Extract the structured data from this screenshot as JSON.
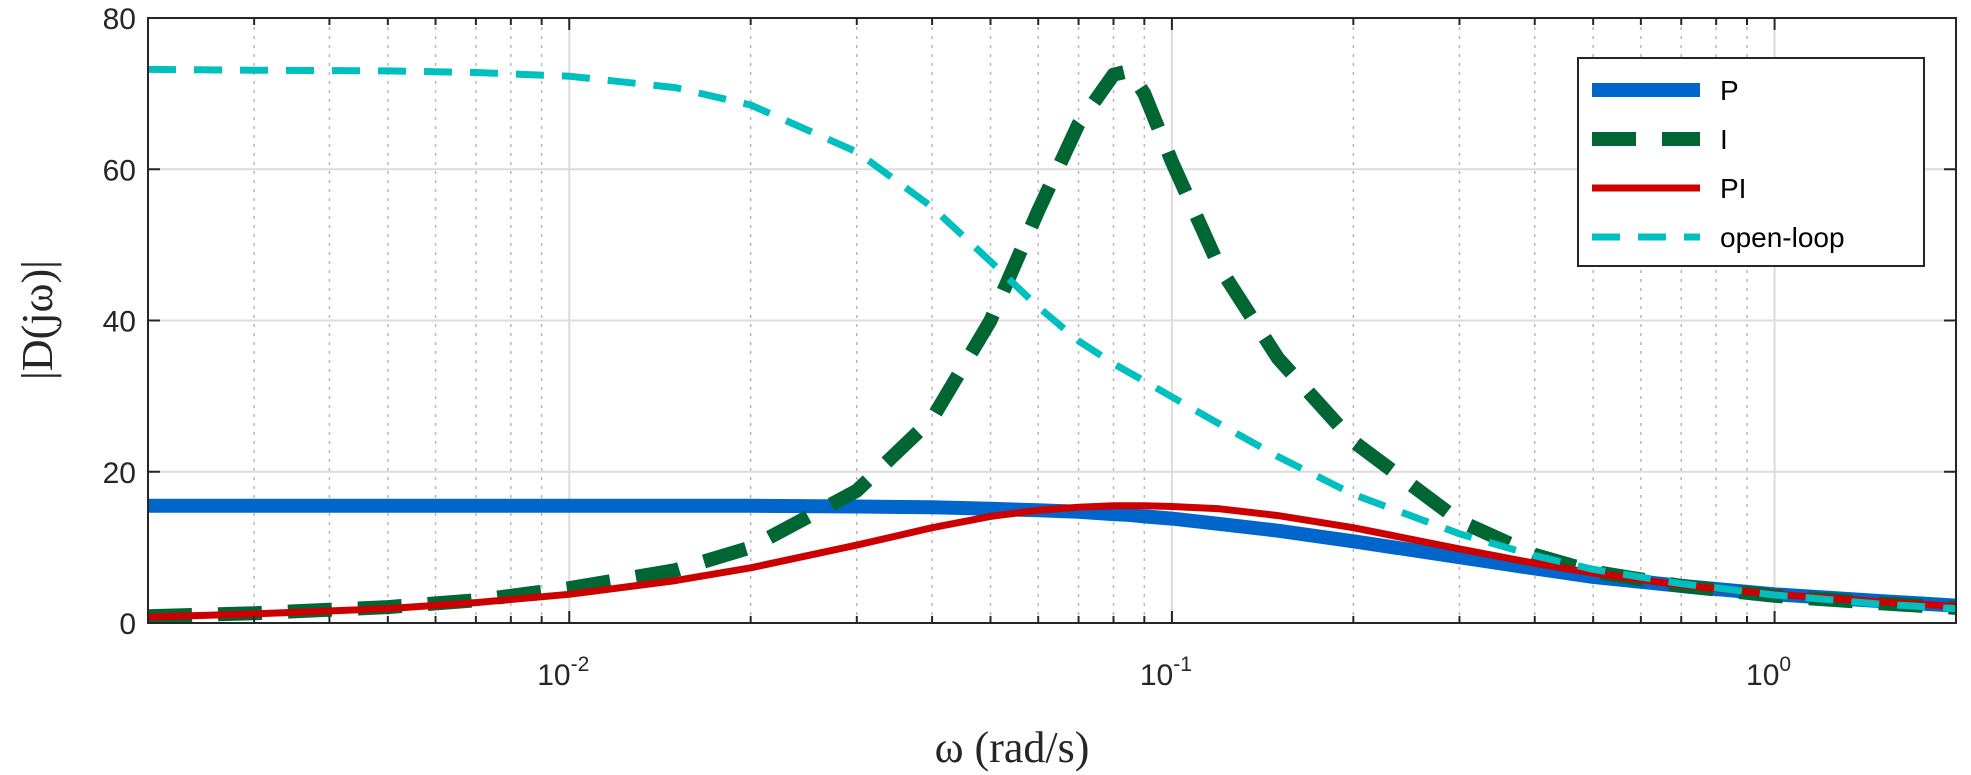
{
  "chart_data": {
    "type": "line",
    "title": "",
    "xlabel": "ω (rad/s)",
    "ylabel": "|D(jω)|",
    "x_scale": "log",
    "xlim": [
      0.002,
      2
    ],
    "ylim": [
      0,
      80
    ],
    "y_ticks": [
      0,
      20,
      40,
      60,
      80
    ],
    "y_tick_labels": [
      "0",
      "20",
      "40",
      "60",
      "80"
    ],
    "x_ticks": [
      0.01,
      0.1,
      1
    ],
    "x_tick_labels": [
      {
        "base": "10",
        "exp": "-2"
      },
      {
        "base": "10",
        "exp": "-1"
      },
      {
        "base": "10",
        "exp": "0"
      }
    ],
    "grid": true,
    "minor_grid": true,
    "legend_position": "top-right",
    "x": [
      0.002,
      0.003,
      0.005,
      0.007,
      0.01,
      0.015,
      0.02,
      0.03,
      0.04,
      0.05,
      0.06,
      0.07,
      0.08,
      0.085,
      0.09,
      0.1,
      0.12,
      0.15,
      0.2,
      0.3,
      0.4,
      0.5,
      0.7,
      1.0,
      1.5,
      2.0
    ],
    "series": [
      {
        "name": "P",
        "color": "#0066cc",
        "dash": "solid",
        "width": 14,
        "values": [
          15.5,
          15.5,
          15.5,
          15.5,
          15.5,
          15.5,
          15.5,
          15.4,
          15.3,
          15.1,
          14.9,
          14.7,
          14.4,
          14.3,
          14.1,
          13.8,
          13.1,
          12.2,
          10.8,
          8.7,
          7.2,
          6.1,
          4.9,
          3.8,
          2.9,
          2.3
        ]
      },
      {
        "name": "I",
        "color": "#006633",
        "dash": "long-dash",
        "width": 14,
        "values": [
          0.9,
          1.3,
          2.1,
          3.0,
          4.6,
          7.0,
          10.0,
          17.5,
          27.0,
          40.0,
          54.5,
          66.0,
          72.5,
          73.0,
          70.0,
          61.0,
          47.0,
          35.0,
          24.0,
          13.5,
          9.0,
          6.8,
          4.9,
          3.6,
          2.6,
          2.0
        ]
      },
      {
        "name": "PI",
        "color": "#cc0000",
        "dash": "solid",
        "width": 7,
        "values": [
          0.8,
          1.2,
          1.9,
          2.7,
          3.8,
          5.6,
          7.3,
          10.3,
          12.6,
          14.1,
          14.9,
          15.3,
          15.5,
          15.5,
          15.5,
          15.4,
          15.1,
          14.2,
          12.6,
          9.8,
          7.9,
          6.6,
          5.0,
          3.8,
          2.8,
          2.2
        ]
      },
      {
        "name": "open-loop",
        "color": "#00bfbf",
        "dash": "dash",
        "width": 7,
        "values": [
          73.2,
          73.1,
          73.0,
          72.8,
          72.3,
          70.8,
          68.5,
          62.3,
          55.0,
          47.8,
          41.8,
          37.3,
          34.3,
          33.1,
          32.0,
          29.9,
          26.3,
          22.0,
          17.0,
          11.8,
          8.9,
          7.1,
          5.2,
          3.7,
          2.5,
          1.9
        ]
      }
    ]
  }
}
